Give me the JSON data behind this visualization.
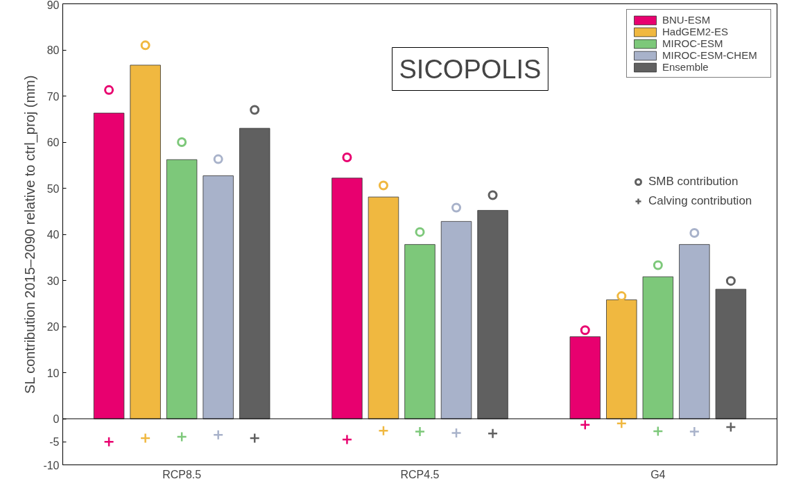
{
  "chart_data": {
    "type": "bar",
    "ylabel": "SL contribution 2015–2090 relative to ctrl_proj (mm)",
    "categories": [
      "RCP8.5",
      "RCP4.5",
      "G4"
    ],
    "ylim": [
      -10,
      90
    ],
    "yticks": [
      -10,
      -5,
      0,
      10,
      20,
      30,
      40,
      50,
      60,
      70,
      80,
      90
    ],
    "grid": false,
    "legend": "top right",
    "annotations": [
      "SICOPOLIS"
    ],
    "ref_lines": [
      {
        "axis": "y",
        "value": 0,
        "color": "#000000"
      }
    ],
    "series": [
      {
        "name": "BNU-ESM",
        "color": "#e8006f",
        "values": [
          66.3,
          52.2,
          17.8
        ]
      },
      {
        "name": "HadGEM2-ES",
        "color": "#f0b840",
        "values": [
          76.7,
          48.1,
          25.8
        ]
      },
      {
        "name": "MIROC-ESM",
        "color": "#7dc87a",
        "values": [
          56.2,
          37.8,
          30.8
        ]
      },
      {
        "name": "MIROC-ESM-CHEM",
        "color": "#a8b2ca",
        "values": [
          52.7,
          42.8,
          37.8
        ]
      },
      {
        "name": "Ensemble",
        "color": "#606060",
        "values": [
          63.0,
          45.2,
          28.1
        ]
      },
      {
        "type": "scatter",
        "marker": "circle",
        "color": "#e8006f",
        "values": [
          71.3,
          56.7,
          19.2
        ]
      },
      {
        "type": "scatter",
        "marker": "circle",
        "color": "#f0b840",
        "values": [
          81.0,
          50.6,
          26.6
        ]
      },
      {
        "type": "scatter",
        "marker": "circle",
        "color": "#7dc87a",
        "values": [
          60.0,
          40.5,
          33.3
        ]
      },
      {
        "type": "scatter",
        "marker": "circle",
        "color": "#a8b2ca",
        "values": [
          56.3,
          45.8,
          40.3
        ]
      },
      {
        "name": "SMB contribution",
        "type": "scatter",
        "marker": "circle",
        "color": "#606060",
        "values": [
          67.0,
          48.5,
          29.9
        ]
      },
      {
        "type": "scatter",
        "marker": "cross",
        "color": "#e8006f",
        "values": [
          -5.0,
          -4.5,
          -1.3
        ]
      },
      {
        "type": "scatter",
        "marker": "cross",
        "color": "#f0b840",
        "values": [
          -4.2,
          -2.6,
          -1.0
        ]
      },
      {
        "type": "scatter",
        "marker": "cross",
        "color": "#7dc87a",
        "values": [
          -3.9,
          -2.8,
          -2.7
        ]
      },
      {
        "type": "scatter",
        "marker": "cross",
        "color": "#a8b2ca",
        "values": [
          -3.5,
          -3.1,
          -2.8
        ]
      },
      {
        "name": "Calving contribution",
        "type": "scatter",
        "marker": "cross",
        "color": "#606060",
        "values": [
          -4.2,
          -3.2,
          -1.8
        ]
      }
    ]
  }
}
